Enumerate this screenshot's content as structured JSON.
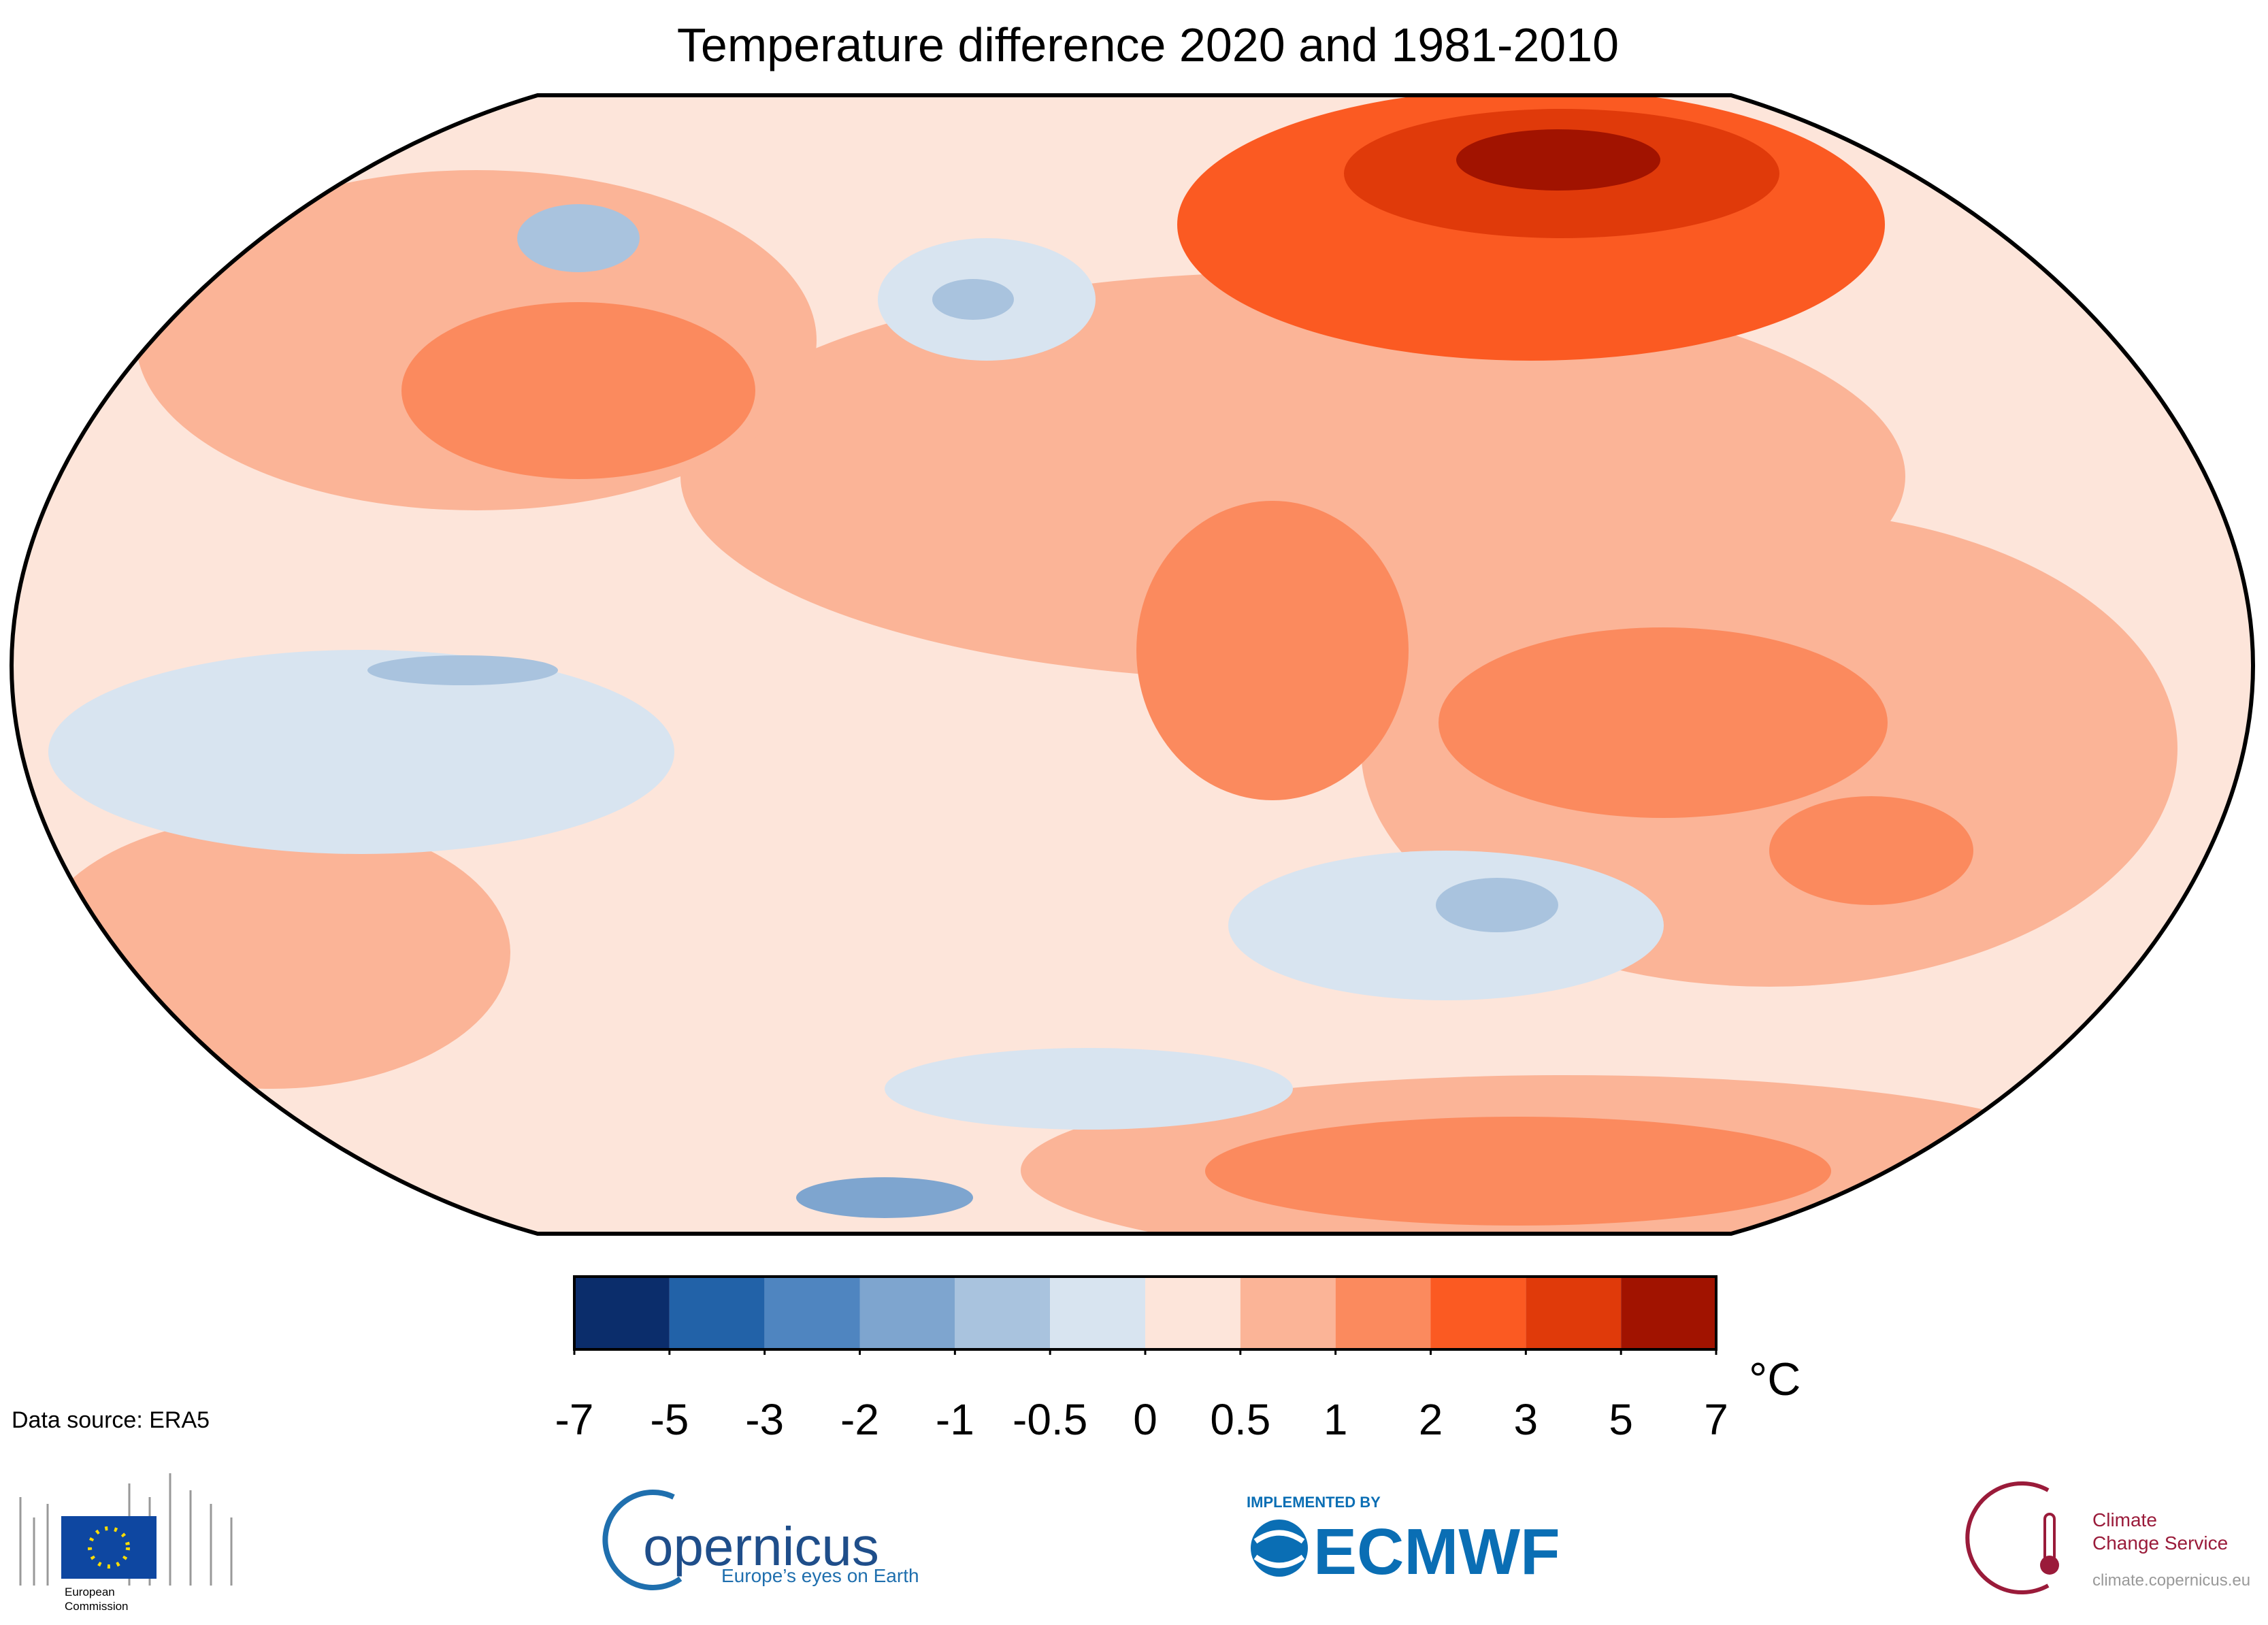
{
  "title": "Temperature difference 2020 and 1981-2010",
  "colorbar": {
    "ticks": [
      -7,
      -5,
      -3,
      -2,
      -1,
      -0.5,
      0,
      0.5,
      1,
      2,
      3,
      5,
      7
    ],
    "colors": [
      "#0b2d6b",
      "#2262a8",
      "#4f85c0",
      "#7ea5cf",
      "#a9c3de",
      "#d8e4f0",
      "#fde5da",
      "#fbb497",
      "#fb8a5e",
      "#fb5a22",
      "#e03a0a",
      "#a11300"
    ],
    "unit": "°C"
  },
  "source": "Data source: ERA5",
  "logos": {
    "eu": [
      "European",
      "Commission"
    ],
    "copernicus": {
      "name": "opernicus",
      "tagline": "Europe’s eyes on Earth"
    },
    "ecmwf": {
      "caption": "IMPLEMENTED BY",
      "name": "ECMWF"
    },
    "c3s": {
      "line1": "Climate",
      "line2": "Change Service",
      "url": "climate.copernicus.eu"
    }
  }
}
